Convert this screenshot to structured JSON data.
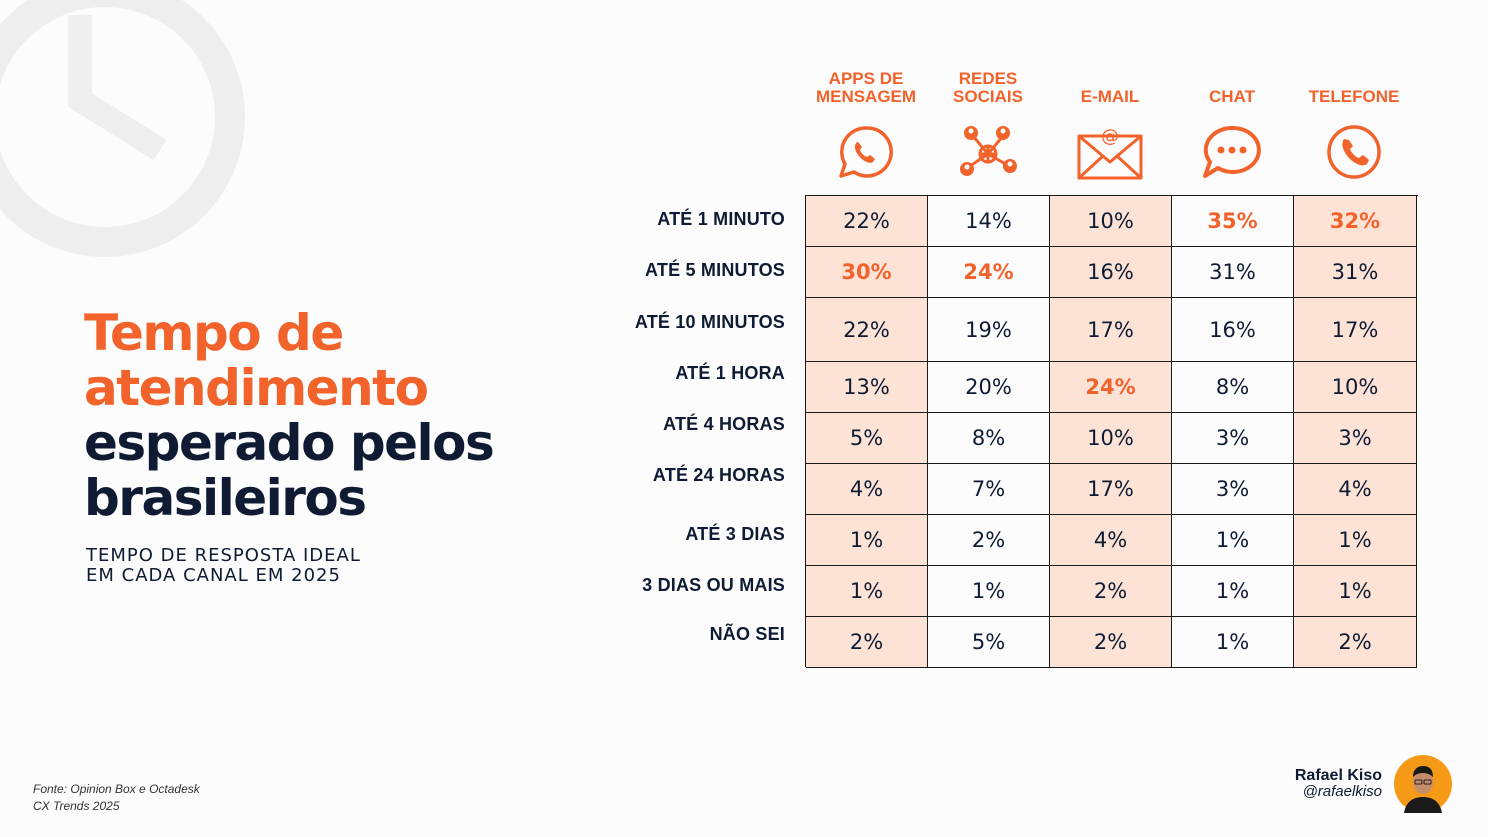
{
  "title": {
    "line1": "Tempo de",
    "line2": "atendimento",
    "line3": "esperado pelos",
    "line4": "brasileiros"
  },
  "subtitle": {
    "line1": "TEMPO DE RESPOSTA IDEAL",
    "line2": "EM CADA CANAL EM 2025"
  },
  "source": {
    "line1": "Fonte: Opinion Box e Octadesk",
    "line2": "CX Trends 2025"
  },
  "author": {
    "name": "Rafael Kiso",
    "handle": "@rafaelkiso"
  },
  "colors": {
    "accent": "#f2622b",
    "dark": "#0e1b33",
    "shade": "#fde3d6"
  },
  "chart_data": {
    "type": "table",
    "columns": [
      {
        "label": "APPS DE MENSAGEM",
        "icon": "whatsapp-icon"
      },
      {
        "label": "REDES SOCIAIS",
        "icon": "social-network-icon"
      },
      {
        "label": "E-MAIL",
        "icon": "email-icon"
      },
      {
        "label": "CHAT",
        "icon": "chat-bubble-icon"
      },
      {
        "label": "TELEFONE",
        "icon": "phone-icon"
      }
    ],
    "rows": [
      {
        "label": "ATÉ 1 MINUTO",
        "values": [
          "22%",
          "14%",
          "10%",
          "35%",
          "32%"
        ],
        "highlight": [
          false,
          false,
          false,
          true,
          true
        ]
      },
      {
        "label": "ATÉ 5 MINUTOS",
        "values": [
          "30%",
          "24%",
          "16%",
          "31%",
          "31%"
        ],
        "highlight": [
          true,
          true,
          false,
          false,
          false
        ]
      },
      {
        "label": "ATÉ 10 MINUTOS",
        "values": [
          "22%",
          "19%",
          "17%",
          "16%",
          "17%"
        ],
        "highlight": [
          false,
          false,
          false,
          false,
          false
        ]
      },
      {
        "label": "ATÉ 1 HORA",
        "values": [
          "13%",
          "20%",
          "24%",
          "8%",
          "10%"
        ],
        "highlight": [
          false,
          false,
          true,
          false,
          false
        ]
      },
      {
        "label": "ATÉ 4 HORAS",
        "values": [
          "5%",
          "8%",
          "10%",
          "3%",
          "3%"
        ],
        "highlight": [
          false,
          false,
          false,
          false,
          false
        ]
      },
      {
        "label": "ATÉ 24 HORAS",
        "values": [
          "4%",
          "7%",
          "17%",
          "3%",
          "4%"
        ],
        "highlight": [
          false,
          false,
          false,
          false,
          false
        ]
      },
      {
        "label": "ATÉ 3 DIAS",
        "values": [
          "1%",
          "2%",
          "4%",
          "1%",
          "1%"
        ],
        "highlight": [
          false,
          false,
          false,
          false,
          false
        ]
      },
      {
        "label": "3 DIAS OU MAIS",
        "values": [
          "1%",
          "1%",
          "2%",
          "1%",
          "1%"
        ],
        "highlight": [
          false,
          false,
          false,
          false,
          false
        ]
      },
      {
        "label": "NÃO SEI",
        "values": [
          "2%",
          "5%",
          "2%",
          "1%",
          "2%"
        ],
        "highlight": [
          false,
          false,
          false,
          false,
          false
        ]
      }
    ]
  }
}
